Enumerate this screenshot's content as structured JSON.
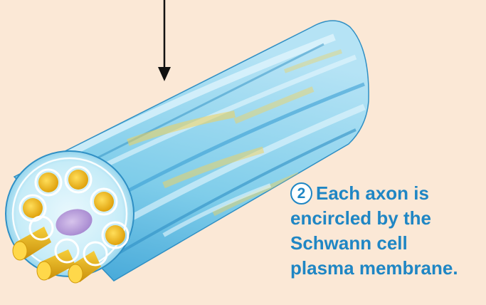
{
  "caption": {
    "step_number": "2",
    "lines": [
      "Each axon is",
      "encircled by the",
      "Schwann cell",
      "plasma membrane."
    ]
  },
  "colors": {
    "background": "#fbe8d6",
    "membrane": "#5ab8e3",
    "membrane_light": "#bfe7f7",
    "axon": "#f2bd1c",
    "nucleus": "#b8a0d6",
    "caption_text": "#1f86c4",
    "arrow": "#111111"
  }
}
